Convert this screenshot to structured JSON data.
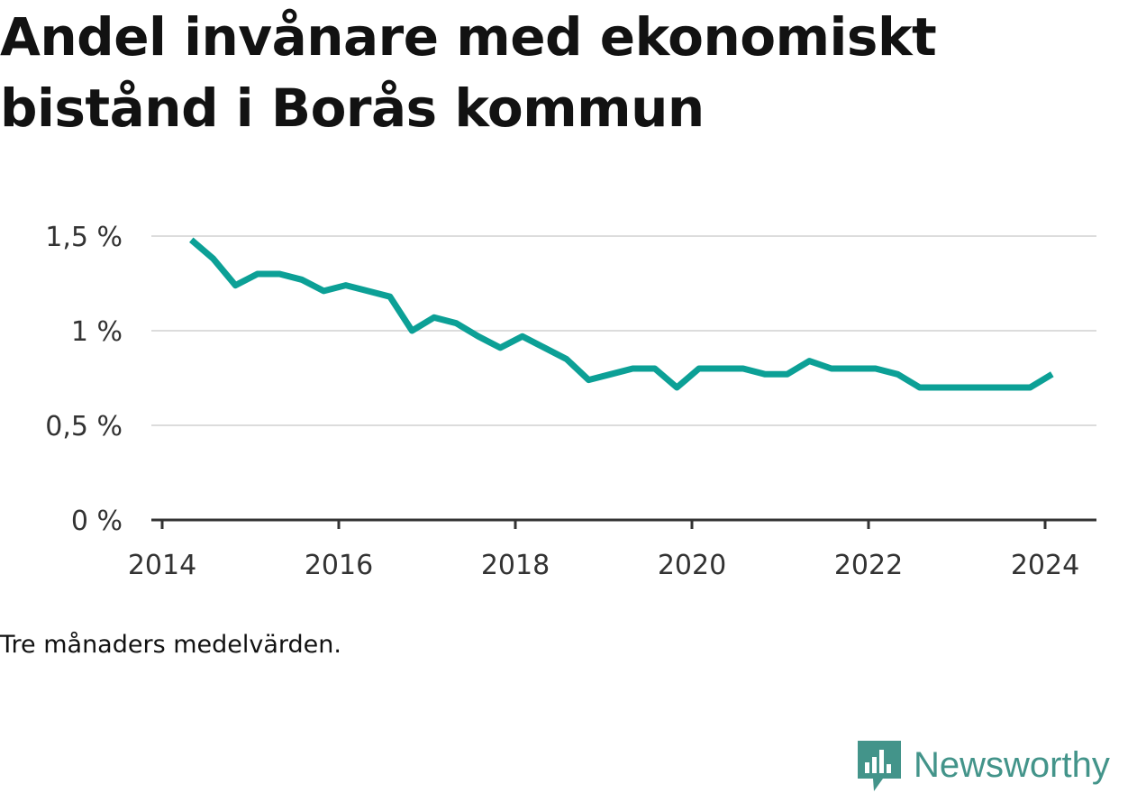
{
  "title": "Andel invånare med ekonomiskt bistånd i Borås kommun",
  "caption": "Tre månaders medelvärden.",
  "brand": {
    "name": "Newsworthy",
    "icon": "chart-bubble-icon",
    "color": "#43948a"
  },
  "chart_data": {
    "type": "line",
    "title": "Andel invånare med ekonomiskt bistånd i Borås kommun",
    "xlabel": "",
    "ylabel": "",
    "xlim": [
      2013.9,
      2024.3
    ],
    "ylim": [
      0,
      1.5
    ],
    "grid": true,
    "line_color": "#0ca096",
    "x_ticks": [
      {
        "value": 2014,
        "label": "2014"
      },
      {
        "value": 2016,
        "label": "2016"
      },
      {
        "value": 2018,
        "label": "2018"
      },
      {
        "value": 2020,
        "label": "2020"
      },
      {
        "value": 2022,
        "label": "2022"
      },
      {
        "value": 2024,
        "label": "2024"
      }
    ],
    "y_ticks": [
      {
        "value": 0,
        "label": "0 %"
      },
      {
        "value": 0.5,
        "label": "0,5 %"
      },
      {
        "value": 1,
        "label": "1 %"
      },
      {
        "value": 1.5,
        "label": "1,5 %"
      }
    ],
    "series": [
      {
        "x": [
          2014.33,
          2014.58,
          2014.83,
          2015.08,
          2015.33,
          2015.58,
          2015.83,
          2016.08,
          2016.33,
          2016.58,
          2016.83,
          2017.08,
          2017.33,
          2017.58,
          2017.83,
          2018.08,
          2018.33,
          2018.58,
          2018.83,
          2019.08,
          2019.33,
          2019.58,
          2019.83,
          2020.08,
          2020.33,
          2020.58,
          2020.83,
          2021.08,
          2021.33,
          2021.58,
          2021.83,
          2022.08,
          2022.33,
          2022.58,
          2022.83,
          2023.08,
          2023.33,
          2023.58,
          2023.83,
          2024.08
        ],
        "values": [
          1.48,
          1.38,
          1.24,
          1.3,
          1.3,
          1.27,
          1.21,
          1.24,
          1.21,
          1.18,
          1.0,
          1.07,
          1.04,
          0.97,
          0.91,
          0.97,
          0.91,
          0.85,
          0.74,
          0.77,
          0.8,
          0.8,
          0.7,
          0.8,
          0.8,
          0.8,
          0.77,
          0.77,
          0.84,
          0.8,
          0.8,
          0.8,
          0.77,
          0.7,
          0.7,
          0.7,
          0.7,
          0.7,
          0.7,
          0.77
        ]
      }
    ]
  }
}
